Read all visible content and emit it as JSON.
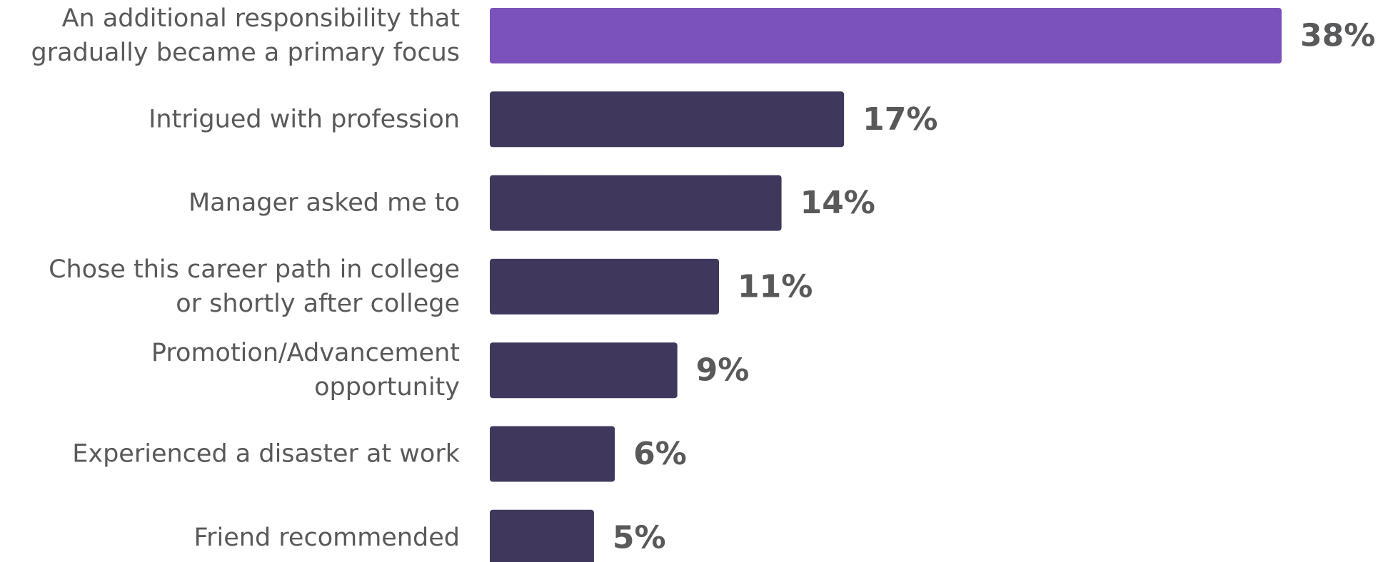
{
  "chart_data": {
    "type": "bar",
    "orientation": "horizontal",
    "categories": [
      [
        "An additional responsibility that",
        "gradually became a primary focus"
      ],
      [
        "Intrigued with profession"
      ],
      [
        "Manager asked me to"
      ],
      [
        "Chose this career path in college",
        "or shortly after college"
      ],
      [
        "Promotion/Advancement",
        "opportunity"
      ],
      [
        "Experienced a disaster at work"
      ],
      [
        "Friend recommended"
      ]
    ],
    "values": [
      38,
      17,
      14,
      11,
      9,
      6,
      5
    ],
    "value_labels": [
      "38%",
      "17%",
      "14%",
      "11%",
      "9%",
      "6%",
      "5%"
    ],
    "unit": "%",
    "xlim": [
      0,
      38
    ],
    "grid": false,
    "legend": "none",
    "colors": {
      "highlight": "#7b52bb",
      "default": "#40385c",
      "label_text": "#58595b"
    },
    "highlight_index": 0
  }
}
